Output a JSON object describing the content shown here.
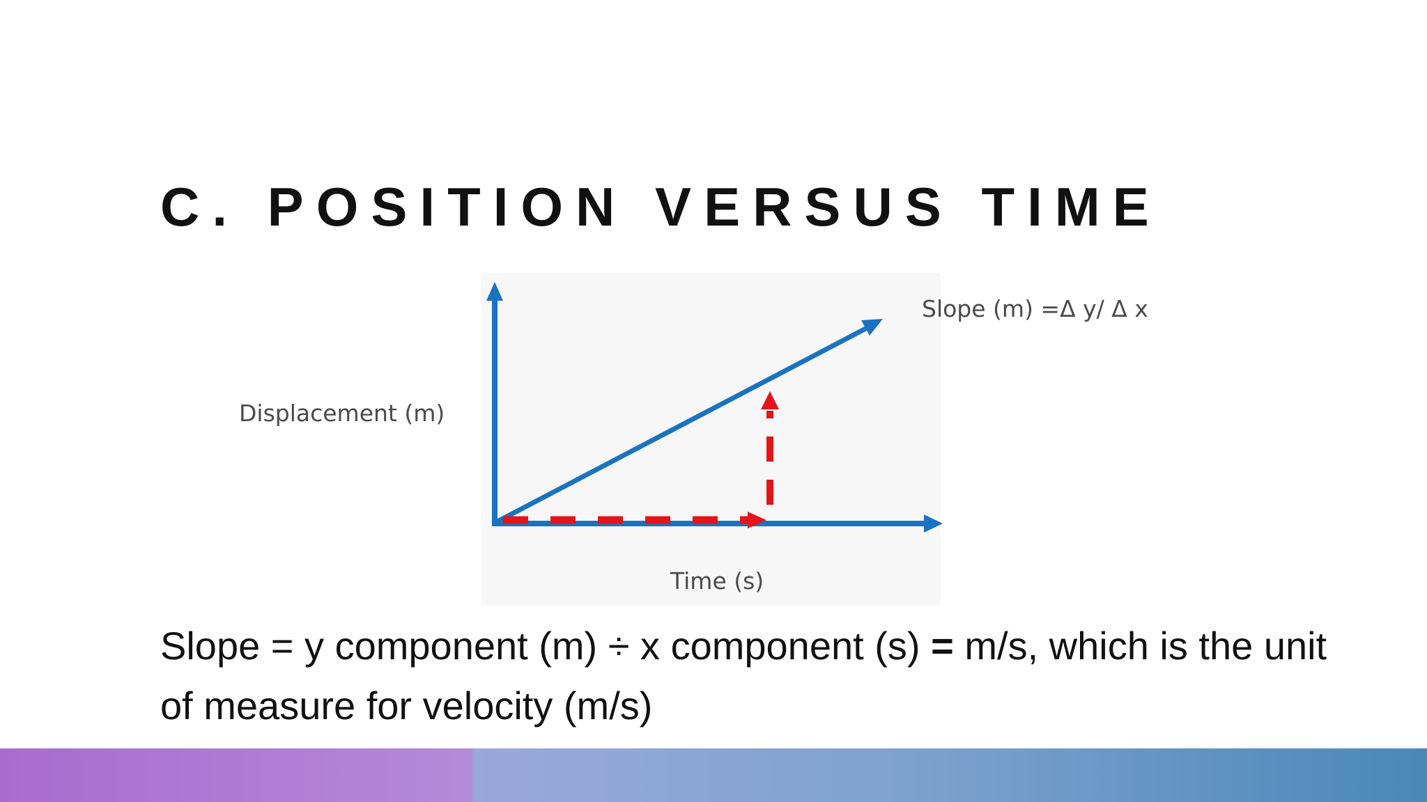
{
  "slide": {
    "title": "C. POSITION VERSUS TIME",
    "caption_part1": "Slope = y component (m) ÷ x component (s) ",
    "caption_bold": "=",
    "caption_part2": " m/s, which is the unit of measure for velocity (m/s)"
  },
  "diagram": {
    "y_axis_label": "Displacement (m)",
    "x_axis_label": "Time (s)",
    "slope_label": "Slope (m) =Δ y/ Δ x",
    "colors": {
      "axis": "#1a73c0",
      "line": "#1a73c0",
      "delta": "#e3151a"
    }
  },
  "footer": {
    "colors": {
      "left": "#a86ccf",
      "right_start": "#9aa8dc",
      "right_end": "#4a88b8"
    }
  }
}
